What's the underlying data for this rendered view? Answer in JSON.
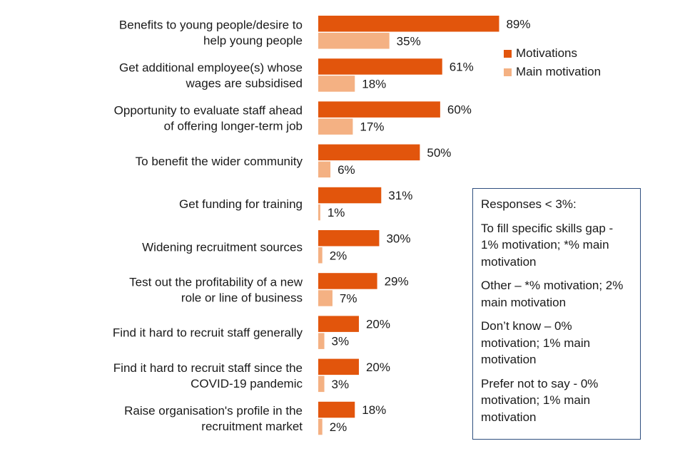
{
  "chart_data": {
    "type": "bar",
    "orientation": "horizontal",
    "categories": [
      [
        "Benefits to young people/desire to",
        "help young people"
      ],
      [
        "Get additional employee(s) whose",
        "wages are subsidised"
      ],
      [
        "Opportunity to evaluate staff ahead",
        "of offering longer-term job"
      ],
      [
        "To benefit the wider community"
      ],
      [
        "Get funding for training"
      ],
      [
        "Widening recruitment sources"
      ],
      [
        "Test out the profitability of a new",
        "role or line of business"
      ],
      [
        "Find it hard to recruit staff generally"
      ],
      [
        "Find it hard to recruit staff since the",
        "COVID-19 pandemic"
      ],
      [
        "Raise organisation's profile in the",
        "recruitment market"
      ]
    ],
    "series": [
      {
        "name": "Motivations",
        "color": "#e2550c",
        "values": [
          89,
          61,
          60,
          50,
          31,
          30,
          29,
          20,
          20,
          18
        ]
      },
      {
        "name": "Main motivation",
        "color": "#f4b183",
        "values": [
          35,
          18,
          17,
          6,
          1,
          2,
          7,
          3,
          3,
          2
        ]
      }
    ],
    "value_suffix": "%",
    "xlim": [
      0,
      100
    ],
    "grid": false,
    "legend_position": "top-right"
  },
  "notes": {
    "title": "Responses < 3%:",
    "items": [
      "To fill specific skills gap - 1% motivation; *% main motivation",
      "Other – *% motivation; 2% main motivation",
      "Don’t know – 0% motivation; 1% main motivation",
      "Prefer not to say -  0% motivation; 1% main motivation"
    ]
  }
}
